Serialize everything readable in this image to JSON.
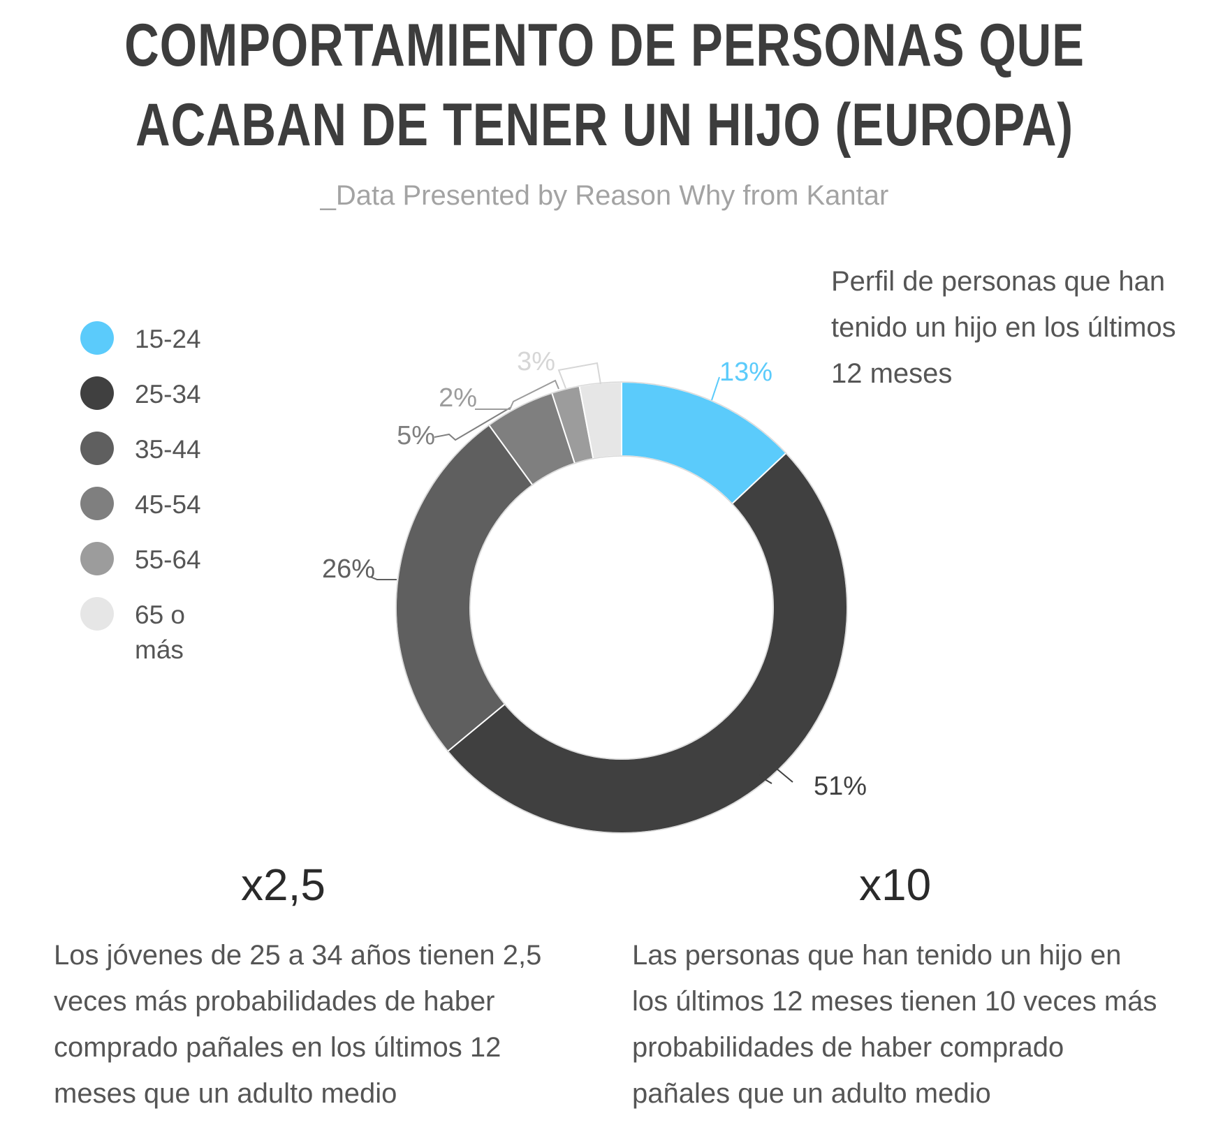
{
  "title": "COMPORTAMIENTO DE PERSONAS QUE ACABAN DE TENER UN HIJO (EUROPA)",
  "subtitle": "_Data Presented by Reason Why from Kantar",
  "profile_text": "Perfil de personas que han tenido un hijo en los últimos 12 meses",
  "chart_data": {
    "type": "pie",
    "donut": true,
    "categories": [
      "15-24",
      "25-34",
      "35-44",
      "45-54",
      "55-64",
      "65 o más"
    ],
    "values": [
      13,
      51,
      26,
      5,
      2,
      3
    ],
    "value_labels": [
      "13%",
      "51%",
      "26%",
      "5%",
      "2%",
      "3%"
    ],
    "colors": [
      "#5bcbfb",
      "#404040",
      "#5f5f5f",
      "#7f7f7f",
      "#9c9c9c",
      "#e6e6e6"
    ],
    "label_colors": [
      "#5bcbfb",
      "#404040",
      "#5f5f5f",
      "#7f7f7f",
      "#9c9c9c",
      "#d6d6d6"
    ],
    "legend_position": "left"
  },
  "stats": [
    {
      "value": "x2,5",
      "text": "Los jóvenes de 25 a 34 años tienen 2,5 veces más probabilidades de haber comprado pañales en los últimos 12 meses que un adulto medio"
    },
    {
      "value": "x10",
      "text": "Las personas que han tenido un hijo en los últimos 12 meses tienen 10 veces más probabilidades de haber comprado pañales que un adulto medio"
    }
  ]
}
